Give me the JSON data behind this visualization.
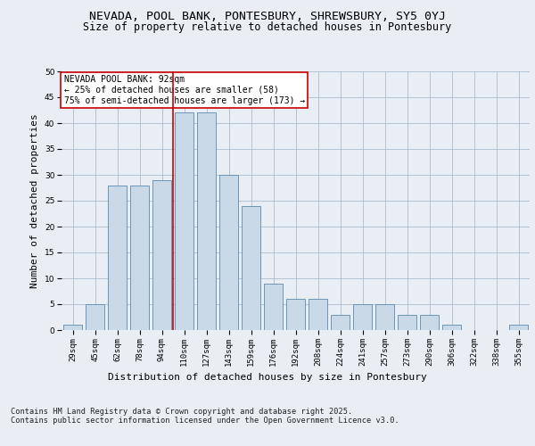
{
  "title1": "NEVADA, POOL BANK, PONTESBURY, SHREWSBURY, SY5 0YJ",
  "title2": "Size of property relative to detached houses in Pontesbury",
  "xlabel": "Distribution of detached houses by size in Pontesbury",
  "ylabel": "Number of detached properties",
  "categories": [
    "29sqm",
    "45sqm",
    "62sqm",
    "78sqm",
    "94sqm",
    "110sqm",
    "127sqm",
    "143sqm",
    "159sqm",
    "176sqm",
    "192sqm",
    "208sqm",
    "224sqm",
    "241sqm",
    "257sqm",
    "273sqm",
    "290sqm",
    "306sqm",
    "322sqm",
    "338sqm",
    "355sqm"
  ],
  "values": [
    1,
    5,
    28,
    28,
    29,
    42,
    42,
    30,
    24,
    9,
    6,
    6,
    3,
    5,
    5,
    3,
    3,
    1,
    0,
    0,
    1
  ],
  "bar_color": "#c9d9e8",
  "bar_edgecolor": "#5a8ab0",
  "redline_x": 4.5,
  "annotation_title": "NEVADA POOL BANK: 92sqm",
  "annotation_line1": "← 25% of detached houses are smaller (58)",
  "annotation_line2": "75% of semi-detached houses are larger (173) →",
  "annotation_box_color": "#ffffff",
  "annotation_box_edgecolor": "#cc0000",
  "redline_color": "#cc0000",
  "footer1": "Contains HM Land Registry data © Crown copyright and database right 2025.",
  "footer2": "Contains public sector information licensed under the Open Government Licence v3.0.",
  "bg_color": "#e8eef4",
  "plot_bg_color": "#e8eef4",
  "ylim": [
    0,
    50
  ],
  "yticks": [
    0,
    5,
    10,
    15,
    20,
    25,
    30,
    35,
    40,
    45,
    50
  ],
  "title_fontsize": 9.5,
  "subtitle_fontsize": 8.5,
  "axis_label_fontsize": 8,
  "tick_fontsize": 6.5,
  "footer_fontsize": 6.2,
  "annotation_fontsize": 7.0
}
